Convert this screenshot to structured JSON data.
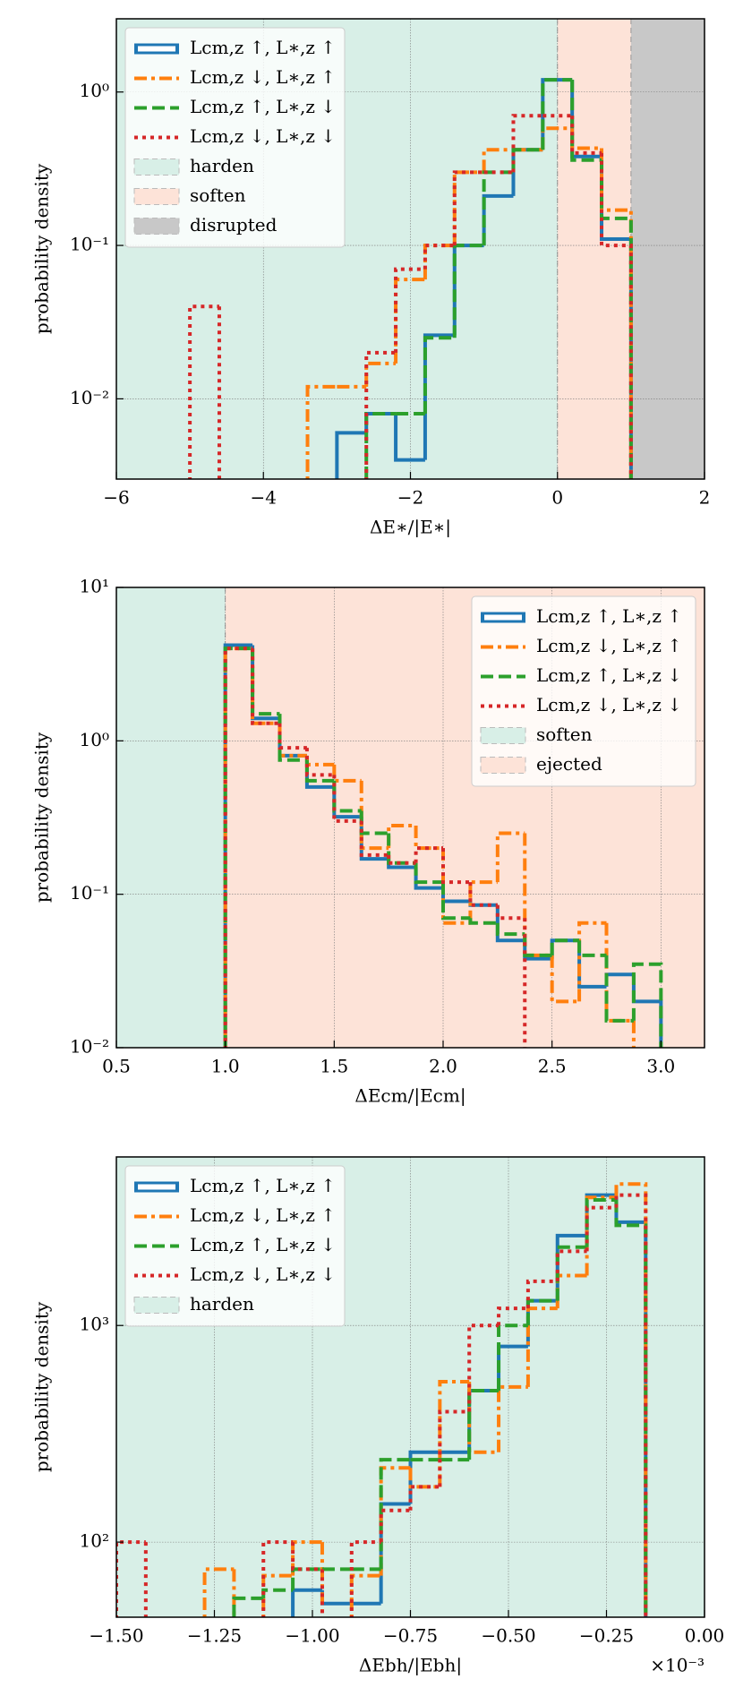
{
  "chart_data": [
    {
      "type": "histogram",
      "xlabel": "ΔE∗/|E∗|",
      "ylabel": "probability density",
      "log_y": true,
      "grid": true,
      "legend": "upper left",
      "xlim": [
        -6,
        2
      ],
      "ylim": [
        0.003,
        3
      ],
      "xticks": [
        {
          "value": -6,
          "label": "−6"
        },
        {
          "value": -4,
          "label": "−4"
        },
        {
          "value": -2,
          "label": "−2"
        },
        0,
        2
      ],
      "yticks": [
        {
          "value": 0.01,
          "label": "10⁻²"
        },
        {
          "value": 0.1,
          "label": "10⁻¹"
        },
        {
          "value": 1,
          "label": "10⁰"
        }
      ],
      "bins": [
        -5.0,
        -4.6,
        -4.2,
        -3.8,
        -3.4,
        -3.0,
        -2.6,
        -2.2,
        -1.8,
        -1.4,
        -1.0,
        -0.6,
        -0.2,
        0.2,
        0.6,
        1.0
      ],
      "regions": [
        {
          "name": "harden",
          "range": [
            -6,
            0
          ],
          "color": "#d8efe7"
        },
        {
          "name": "soften",
          "range": [
            0,
            1
          ],
          "color": "#fde3d8"
        },
        {
          "name": "disrupted",
          "range": [
            1,
            2
          ],
          "color": "#c8c8c8"
        }
      ],
      "series": [
        {
          "name": "Lcm,z ↑, L∗,z ↑",
          "color": "#1f77b4",
          "linestyle": "solid",
          "values": [
            0,
            0,
            0,
            0,
            0,
            0.006,
            0.008,
            0.004,
            0.026,
            0.1,
            0.21,
            0.42,
            1.2,
            0.38,
            0.11
          ]
        },
        {
          "name": "Lcm,z ↓, L∗,z ↑",
          "color": "#ff7f0e",
          "linestyle": "dashdot",
          "values": [
            0,
            0,
            0,
            0,
            0.012,
            0.012,
            0.017,
            0.06,
            0.1,
            0.3,
            0.42,
            0.42,
            0.58,
            0.43,
            0.17
          ]
        },
        {
          "name": "Lcm,z ↑, L∗,z ↓",
          "color": "#2ca02c",
          "linestyle": "dashed",
          "values": [
            0,
            0,
            0,
            0,
            0,
            0,
            0.008,
            0.008,
            0.025,
            0.1,
            0.3,
            0.42,
            1.2,
            0.36,
            0.15
          ]
        },
        {
          "name": "Lcm,z ↓, L∗,z ↓",
          "color": "#d62728",
          "linestyle": "dotted",
          "values": [
            0.04,
            0,
            0,
            0,
            0,
            0,
            0.02,
            0.07,
            0.1,
            0.3,
            0.3,
            0.7,
            0.7,
            0.4,
            0.1
          ]
        }
      ]
    },
    {
      "type": "histogram",
      "xlabel": "ΔEcm/|Ecm|",
      "ylabel": "probability density",
      "log_y": true,
      "grid": true,
      "legend": "upper right",
      "xlim": [
        0.5,
        3.2
      ],
      "ylim": [
        0.01,
        10
      ],
      "xticks": [
        0.5,
        {
          "value": 1,
          "label": "1.0"
        },
        1.5,
        {
          "value": 2,
          "label": "2.0"
        },
        2.5,
        {
          "value": 3,
          "label": "3.0"
        }
      ],
      "yticks": [
        {
          "value": 0.01,
          "label": "10⁻²"
        },
        {
          "value": 0.1,
          "label": "10⁻¹"
        },
        {
          "value": 1,
          "label": "10⁰"
        },
        {
          "value": 10,
          "label": "10¹"
        }
      ],
      "bins": [
        1.0,
        1.125,
        1.25,
        1.375,
        1.5,
        1.625,
        1.75,
        1.875,
        2.0,
        2.125,
        2.25,
        2.375,
        2.5,
        2.625,
        2.75,
        2.875,
        3.0
      ],
      "regions": [
        {
          "name": "soften",
          "range": [
            0.5,
            1
          ],
          "color": "#d8efe7"
        },
        {
          "name": "ejected",
          "range": [
            1,
            3.2
          ],
          "color": "#fde3d8"
        }
      ],
      "series": [
        {
          "name": "Lcm,z ↑, L∗,z ↑",
          "color": "#1f77b4",
          "linestyle": "solid",
          "values": [
            4.2,
            1.4,
            0.8,
            0.5,
            0.32,
            0.17,
            0.15,
            0.11,
            0.09,
            0.085,
            0.05,
            0.038,
            0.05,
            0.025,
            0.03,
            0.02
          ]
        },
        {
          "name": "Lcm,z ↓, L∗,z ↑",
          "color": "#ff7f0e",
          "linestyle": "dashdot",
          "values": [
            4.0,
            1.3,
            0.8,
            0.7,
            0.55,
            0.2,
            0.28,
            0.2,
            0.065,
            0.12,
            0.25,
            0.04,
            0.02,
            0.065,
            0.015,
            0
          ]
        },
        {
          "name": "Lcm,z ↑, L∗,z ↓",
          "color": "#2ca02c",
          "linestyle": "dashed",
          "values": [
            4.0,
            1.5,
            0.75,
            0.55,
            0.35,
            0.25,
            0.16,
            0.12,
            0.07,
            0.065,
            0.055,
            0.04,
            0.05,
            0.04,
            0.015,
            0.035
          ]
        },
        {
          "name": "Lcm,z ↓, L∗,z ↓",
          "color": "#d62728",
          "linestyle": "dotted",
          "values": [
            4.0,
            1.3,
            0.9,
            0.6,
            0.3,
            0.18,
            0.16,
            0.2,
            0.12,
            0.085,
            0.07,
            0,
            0,
            0,
            0,
            0
          ]
        }
      ]
    },
    {
      "type": "histogram",
      "xlabel": "ΔEbh/|Ebh|",
      "ylabel": "probability density",
      "x_offset_label": "×10⁻³",
      "log_y": true,
      "grid": true,
      "legend": "upper left",
      "xlim": [
        -1.5,
        0
      ],
      "ylim": [
        45,
        6000
      ],
      "xticks": [
        {
          "value": -1.5,
          "label": "−1.50"
        },
        {
          "value": -1.25,
          "label": "−1.25"
        },
        {
          "value": -1,
          "label": "−1.00"
        },
        {
          "value": -0.75,
          "label": "−0.75"
        },
        {
          "value": -0.5,
          "label": "−0.50"
        },
        {
          "value": -0.25,
          "label": "−0.25"
        },
        {
          "value": 0,
          "label": "0.00"
        }
      ],
      "yticks": [
        {
          "value": 100,
          "label": "10²"
        },
        {
          "value": 1000,
          "label": "10³"
        }
      ],
      "bins": [
        -1.5,
        -1.425,
        -1.35,
        -1.275,
        -1.2,
        -1.125,
        -1.05,
        -0.975,
        -0.9,
        -0.825,
        -0.75,
        -0.675,
        -0.6,
        -0.525,
        -0.45,
        -0.375,
        -0.3,
        -0.225,
        -0.15
      ],
      "regions": [
        {
          "name": "harden",
          "range": [
            -1.5,
            0
          ],
          "color": "#d8efe7"
        }
      ],
      "series": [
        {
          "name": "Lcm,z ↑, L∗,z ↑",
          "color": "#1f77b4",
          "linestyle": "solid",
          "values": [
            0,
            0,
            0,
            0,
            0,
            0,
            60,
            52,
            52,
            150,
            260,
            260,
            500,
            800,
            1300,
            2600,
            4000,
            3000
          ]
        },
        {
          "name": "Lcm,z ↓, L∗,z ↑",
          "color": "#ff7f0e",
          "linestyle": "dashdot",
          "values": [
            0,
            0,
            0,
            75,
            0,
            70,
            100,
            0,
            70,
            220,
            180,
            550,
            260,
            520,
            1200,
            1700,
            3900,
            4500
          ]
        },
        {
          "name": "Lcm,z ↑, L∗,z ↓",
          "color": "#2ca02c",
          "linestyle": "dashed",
          "values": [
            0,
            0,
            0,
            0,
            55,
            60,
            75,
            75,
            75,
            240,
            240,
            240,
            500,
            1000,
            1300,
            2300,
            3800,
            2900
          ]
        },
        {
          "name": "Lcm,z ↓, L∗,z ↓",
          "color": "#d62728",
          "linestyle": "dotted",
          "values": [
            100,
            0,
            0,
            0,
            0,
            100,
            75,
            0,
            100,
            140,
            180,
            400,
            1000,
            1200,
            1600,
            2200,
            3500,
            4000
          ]
        }
      ]
    }
  ]
}
